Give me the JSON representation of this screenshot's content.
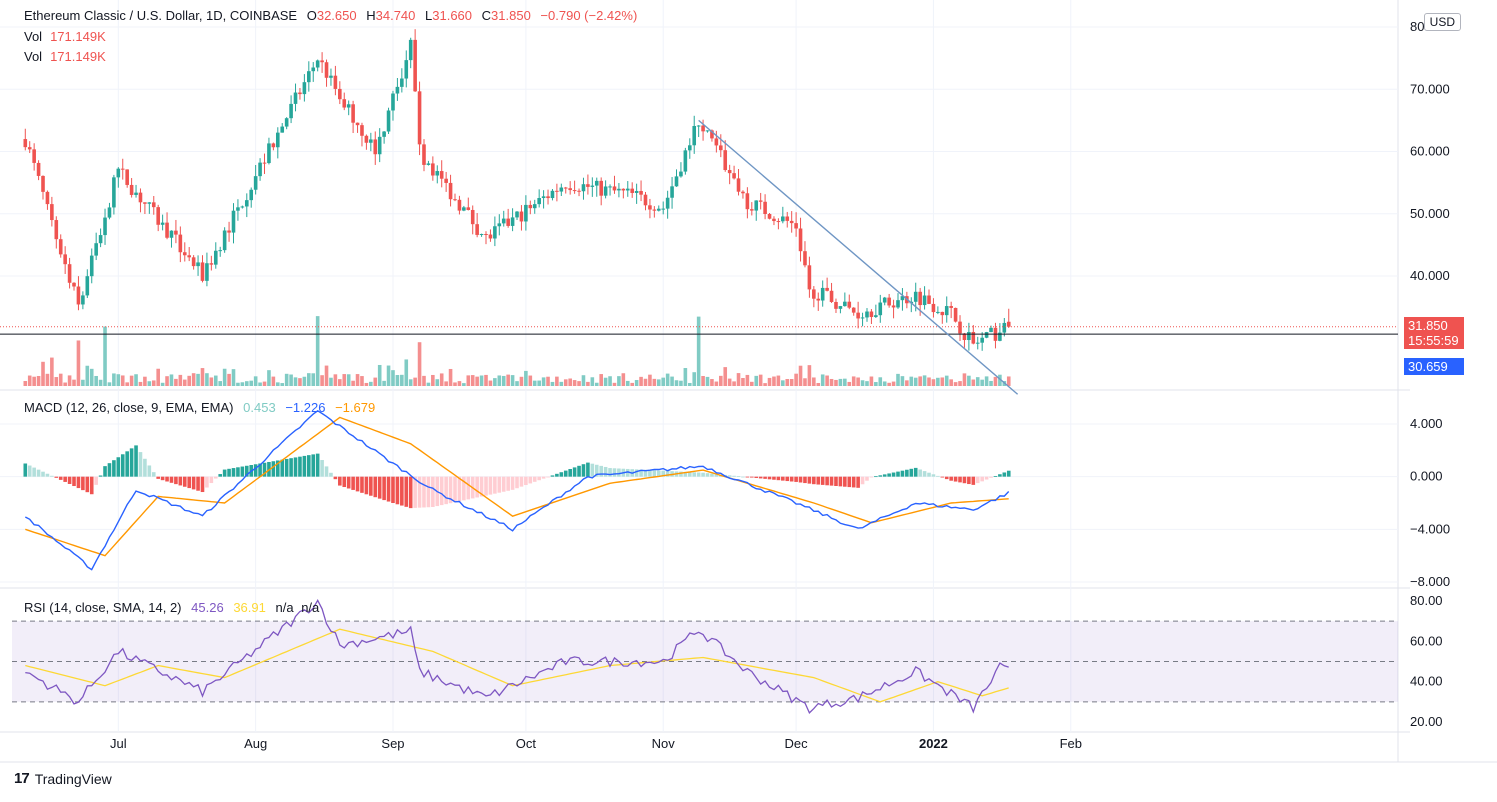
{
  "header": {
    "symbol": "Ethereum Classic / U.S. Dollar, 1D, COINBASE",
    "o_label": "O",
    "o_value": "32.650",
    "h_label": "H",
    "h_value": "34.740",
    "l_label": "L",
    "l_value": "31.660",
    "c_label": "C",
    "c_value": "31.850",
    "change": "−0.790 (−2.42%)",
    "vol_lines": [
      {
        "label": "Vol",
        "value": "171.149K"
      },
      {
        "label": "Vol",
        "value": "171.149K"
      }
    ],
    "currency_button": "USD"
  },
  "price_tags": {
    "last": "31.850",
    "countdown": "15:55:59",
    "line": "30.659"
  },
  "macd_legend": {
    "label": "MACD (12, 26, close, 9, EMA, EMA)",
    "hist": "0.453",
    "macd": "−1.226",
    "signal": "−1.679"
  },
  "rsi_legend": {
    "label": "RSI (14, close, SMA, 14, 2)",
    "rsi": "45.26",
    "sma": "36.91",
    "u1": "n/a",
    "u2": "n/a"
  },
  "brand": {
    "logo": "17",
    "name": "TradingView"
  },
  "colors": {
    "up": "#26a69a",
    "down": "#ef5350",
    "macd": "#2962ff",
    "signal": "#ff9800",
    "rsi": "#7e57c2",
    "rsi_sma": "#fdd835",
    "trend": "#6f96c4"
  },
  "chart_data": [
    {
      "type": "candlestick",
      "title": "Ethereum Classic / U.S. Dollar, 1D, COINBASE",
      "x_ticks": [
        "Jul",
        "Aug",
        "Sep",
        "Oct",
        "Nov",
        "Dec",
        "2022",
        "Feb"
      ],
      "y_ticks": [
        "80",
        "70.000",
        "60.000",
        "50.000",
        "40.000"
      ],
      "ylim": [
        20,
        80
      ],
      "key_points": [
        {
          "date": "Jun 10",
          "close": 62
        },
        {
          "date": "Jun 22",
          "close": 35
        },
        {
          "date": "Jul 1",
          "close": 57
        },
        {
          "date": "Jul 20",
          "close": 40
        },
        {
          "date": "Aug 15",
          "close": 75
        },
        {
          "date": "Aug 20",
          "close": 69
        },
        {
          "date": "Aug 28",
          "close": 60
        },
        {
          "date": "Sep 5",
          "close": 77
        },
        {
          "date": "Sep 7",
          "close": 60
        },
        {
          "date": "Sep 22",
          "close": 46
        },
        {
          "date": "Oct 10",
          "close": 55
        },
        {
          "date": "Oct 25",
          "close": 53
        },
        {
          "date": "Nov 1",
          "close": 51
        },
        {
          "date": "Nov 9",
          "close": 65
        },
        {
          "date": "Nov 20",
          "close": 52
        },
        {
          "date": "Dec 1",
          "close": 48
        },
        {
          "date": "Dec 4",
          "close": 38
        },
        {
          "date": "Dec 15",
          "close": 34
        },
        {
          "date": "Dec 28",
          "close": 37
        },
        {
          "date": "Jan 5",
          "close": 34
        },
        {
          "date": "Jan 10",
          "close": 29
        },
        {
          "date": "Jan 18",
          "close": 31.85
        }
      ],
      "last_close": 31.85,
      "horizontal_line": 30.659,
      "trendline": [
        {
          "date": "Nov 9",
          "price": 65
        },
        {
          "date": "Jan 20",
          "price": 21
        }
      ]
    },
    {
      "type": "bar",
      "title": "Vol",
      "last_value": "171.149K"
    },
    {
      "type": "line",
      "title": "MACD (12, 26, close, 9, EMA, EMA)",
      "y_ticks": [
        "4.000",
        "0.000",
        "−4.000",
        "−8.000"
      ],
      "ylim": [
        -8,
        6
      ],
      "series": [
        {
          "name": "MACD",
          "key_points": [
            [
              "Jun 10",
              -3
            ],
            [
              "Jun 25",
              -7
            ],
            [
              "Jul 5",
              -1
            ],
            [
              "Jul 20",
              -3
            ],
            [
              "Aug 15",
              5
            ],
            [
              "Sep 1",
              1
            ],
            [
              "Sep 10",
              -1
            ],
            [
              "Sep 28",
              -4
            ],
            [
              "Oct 15",
              0
            ],
            [
              "Nov 10",
              0.8
            ],
            [
              "Dec 1",
              -2
            ],
            [
              "Dec 15",
              -4
            ],
            [
              "Dec 28",
              -2
            ],
            [
              "Jan 10",
              -2.5
            ],
            [
              "Jan 18",
              -1.226
            ]
          ]
        },
        {
          "name": "Signal",
          "key_points": [
            [
              "Jun 10",
              -4
            ],
            [
              "Jun 28",
              -6
            ],
            [
              "Jul 10",
              -1.5
            ],
            [
              "Jul 25",
              -2
            ],
            [
              "Aug 20",
              4.5
            ],
            [
              "Sep 5",
              2.5
            ],
            [
              "Sep 28",
              -3
            ],
            [
              "Oct 20",
              -0.5
            ],
            [
              "Nov 10",
              0.5
            ],
            [
              "Dec 5",
              -2
            ],
            [
              "Dec 18",
              -3.5
            ],
            [
              "Jan 5",
              -2
            ],
            [
              "Jan 18",
              -1.679
            ]
          ]
        }
      ],
      "histogram_last": 0.453
    },
    {
      "type": "line",
      "title": "RSI (14, close, SMA, 14, 2)",
      "y_ticks": [
        "80.00",
        "60.00",
        "40.00",
        "20.00"
      ],
      "ylim": [
        20,
        80
      ],
      "bands": [
        30,
        70
      ],
      "series": [
        {
          "name": "RSI",
          "key_points": [
            [
              "Jun 10",
              45
            ],
            [
              "Jun 22",
              30
            ],
            [
              "Jul 1",
              55
            ],
            [
              "Jul 20",
              35
            ],
            [
              "Aug 15",
              80
            ],
            [
              "Aug 20",
              58
            ],
            [
              "Sep 5",
              65
            ],
            [
              "Sep 7",
              45
            ],
            [
              "Sep 22",
              32
            ],
            [
              "Oct 10",
              50
            ],
            [
              "Nov 1",
              50
            ],
            [
              "Nov 9",
              66
            ],
            [
              "Nov 20",
              45
            ],
            [
              "Dec 4",
              27
            ],
            [
              "Dec 15",
              32
            ],
            [
              "Dec 28",
              45
            ],
            [
              "Jan 10",
              27
            ],
            [
              "Jan 16",
              47
            ],
            [
              "Jan 18",
              45.26
            ]
          ]
        },
        {
          "name": "SMA",
          "key_points": [
            [
              "Jun 10",
              48
            ],
            [
              "Jun 28",
              38
            ],
            [
              "Jul 10",
              48
            ],
            [
              "Jul 25",
              42
            ],
            [
              "Aug 20",
              66
            ],
            [
              "Sep 10",
              55
            ],
            [
              "Sep 28",
              38
            ],
            [
              "Oct 20",
              48
            ],
            [
              "Nov 10",
              52
            ],
            [
              "Dec 5",
              42
            ],
            [
              "Dec 20",
              30
            ],
            [
              "Jan 2",
              40
            ],
            [
              "Jan 12",
              33
            ],
            [
              "Jan 18",
              36.91
            ]
          ]
        }
      ]
    }
  ]
}
